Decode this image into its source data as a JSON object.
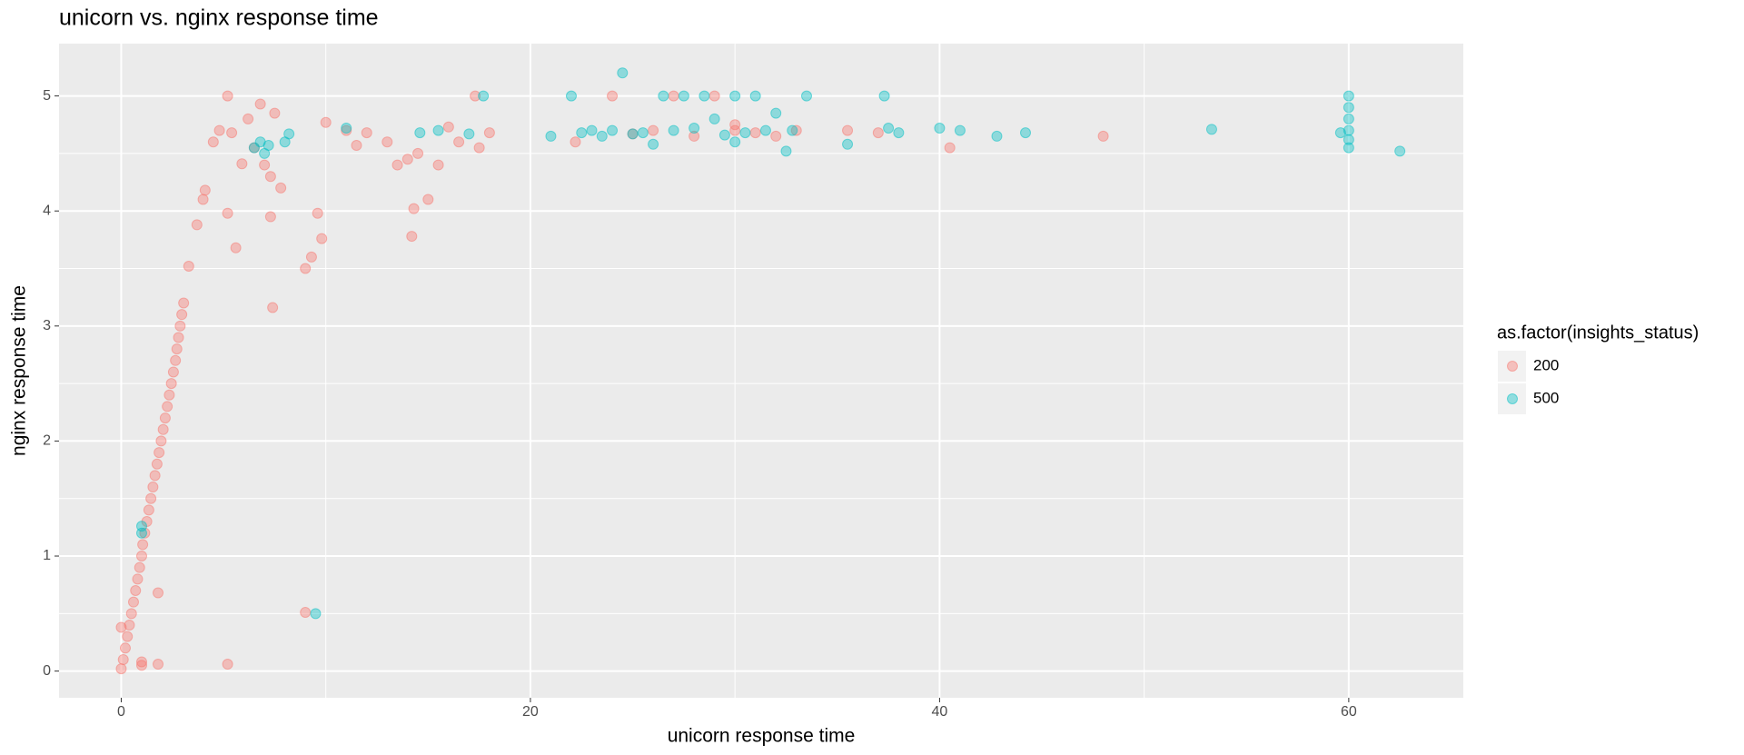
{
  "chart_data": {
    "type": "scatter",
    "title": "unicorn vs.  nginx response time",
    "x_label": "unicorn response time",
    "y_label": "nginx response time",
    "legend_title": "as.factor(insights_status)",
    "legend_position": "right",
    "grid": true,
    "xlim": [
      -3.04,
      65.6
    ],
    "ylim": [
      -0.232,
      5.455
    ],
    "xticks": [
      0,
      20,
      40,
      60
    ],
    "yticks": [
      0,
      1,
      2,
      3,
      4,
      5
    ],
    "series": [
      {
        "name": "200",
        "color": "#F8766D",
        "x": [
          0,
          0.1,
          0.2,
          0.3,
          0.4,
          0.5,
          0.6,
          0.7,
          0.8,
          0.9,
          1,
          1.05,
          1.15,
          1.25,
          1.35,
          1.45,
          1.55,
          1.65,
          1.75,
          1.85,
          1.95,
          2.05,
          2.15,
          2.25,
          2.35,
          2.45,
          2.55,
          2.65,
          2.72,
          2.8,
          2.88,
          2.96,
          3.05,
          0,
          1,
          1,
          1.8,
          1.8,
          5.2,
          9,
          3.3,
          3.7,
          4,
          4.1,
          4.5,
          4.8,
          5.2,
          5.4,
          5.6,
          5.9,
          6.2,
          6.5,
          6.8,
          7,
          7.3,
          7.3,
          7.4,
          7.5,
          7.8,
          5.2,
          9.8,
          9,
          9.3,
          9.6,
          10,
          11,
          11.5,
          12,
          13,
          13.5,
          14,
          14.2,
          14.3,
          14.5,
          15,
          15.5,
          16,
          16.5,
          17.3,
          17.5,
          18,
          22.2,
          24,
          25,
          26,
          27,
          28,
          29,
          30,
          30,
          31,
          32,
          33,
          35.5,
          37,
          40.5,
          48
        ],
        "values": [
          0.02,
          0.1,
          0.2,
          0.3,
          0.4,
          0.5,
          0.6,
          0.7,
          0.8,
          0.9,
          1,
          1.1,
          1.2,
          1.3,
          1.4,
          1.5,
          1.6,
          1.7,
          1.8,
          1.9,
          2,
          2.1,
          2.2,
          2.3,
          2.4,
          2.5,
          2.6,
          2.7,
          2.8,
          2.9,
          3,
          3.1,
          3.2,
          0.38,
          0.05,
          0.08,
          0.68,
          0.06,
          0.06,
          0.51,
          3.52,
          3.88,
          4.1,
          4.18,
          4.6,
          4.7,
          5,
          4.68,
          3.68,
          4.41,
          4.8,
          4.55,
          4.93,
          4.4,
          4.3,
          3.95,
          3.16,
          4.85,
          4.2,
          3.98,
          3.76,
          3.5,
          3.6,
          3.98,
          4.77,
          4.7,
          4.57,
          4.68,
          4.6,
          4.4,
          4.45,
          3.78,
          4.02,
          4.5,
          4.1,
          4.4,
          4.73,
          4.6,
          5,
          4.55,
          4.68,
          4.6,
          5,
          4.67,
          4.7,
          5,
          4.65,
          5,
          4.75,
          4.7,
          4.68,
          4.65,
          4.7,
          4.7,
          4.68,
          4.55,
          4.65
        ]
      },
      {
        "name": "500",
        "color": "#00BFC4",
        "x": [
          1,
          1,
          9.5,
          6.5,
          6.8,
          7,
          7.2,
          8,
          8.2,
          11,
          14.6,
          15.5,
          17,
          17.7,
          21,
          22,
          22.5,
          23,
          23.5,
          24,
          24.5,
          25,
          25.5,
          26,
          26.5,
          27,
          27.5,
          28,
          28.5,
          29,
          29.5,
          30,
          30,
          30.5,
          31,
          31.5,
          32,
          32.5,
          32.8,
          33.5,
          35.5,
          37.3,
          37.5,
          38,
          40,
          41,
          42.8,
          44.2,
          53.3,
          60,
          60,
          60,
          60,
          60,
          60,
          59.6,
          62.5
        ],
        "values": [
          1.2,
          1.26,
          0.5,
          4.55,
          4.6,
          4.5,
          4.57,
          4.6,
          4.67,
          4.72,
          4.68,
          4.7,
          4.67,
          5,
          4.65,
          5,
          4.68,
          4.7,
          4.65,
          4.7,
          5.2,
          4.67,
          4.68,
          4.58,
          5,
          4.7,
          5,
          4.72,
          5,
          4.8,
          4.66,
          4.6,
          5,
          4.68,
          5,
          4.7,
          4.85,
          4.52,
          4.7,
          5,
          4.58,
          5,
          4.72,
          4.68,
          4.72,
          4.7,
          4.65,
          4.68,
          4.71,
          4.55,
          4.62,
          4.7,
          4.8,
          4.9,
          5,
          4.68,
          4.52
        ]
      }
    ]
  }
}
